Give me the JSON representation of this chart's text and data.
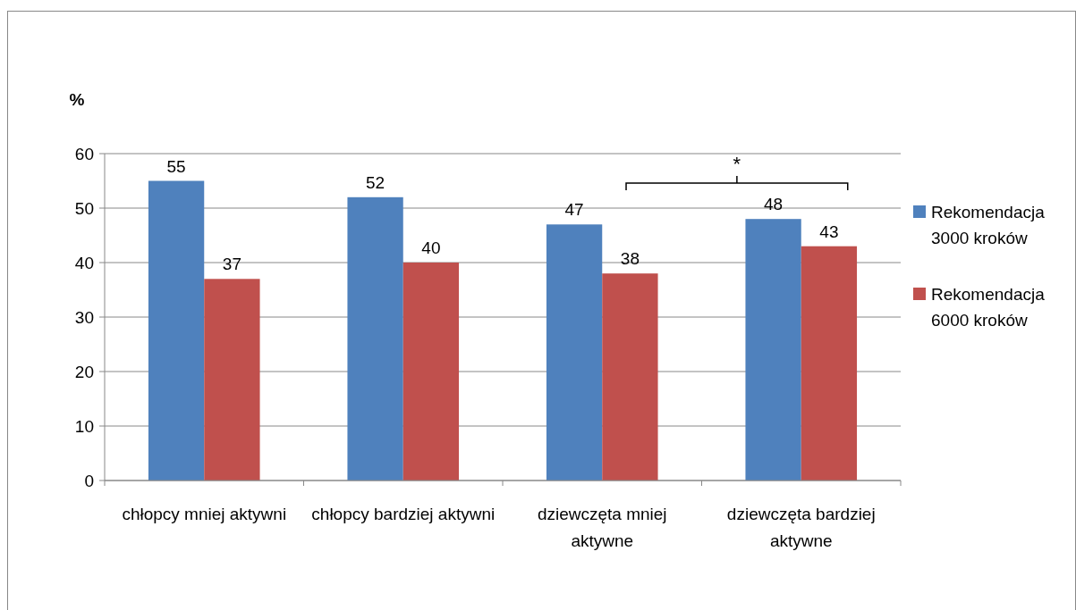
{
  "chart_data": {
    "type": "bar",
    "ylabel": "%",
    "categories": [
      "chłopcy mniej aktywni",
      "chłopcy bardziej aktywni",
      "dziewczęta mniej aktywne",
      "dziewczęta bardziej aktywne"
    ],
    "series": [
      {
        "name": "Rekomendacja 3000 kroków",
        "color": "#4f81bd",
        "values": [
          55,
          52,
          47,
          48
        ]
      },
      {
        "name": "Rekomendacja 6000 kroków",
        "color": "#c0504d",
        "values": [
          37,
          40,
          38,
          43
        ]
      }
    ],
    "ylim": [
      0,
      60
    ],
    "yticks": [
      0,
      10,
      20,
      30,
      40,
      50,
      60
    ],
    "grid": "y",
    "legend": "right",
    "data_labels": true,
    "annotations": [
      "*"
    ]
  }
}
